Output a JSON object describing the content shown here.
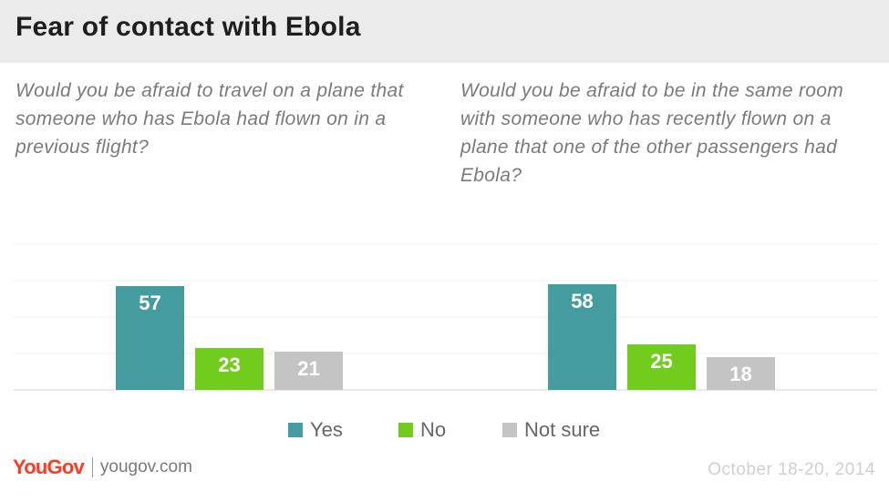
{
  "title": "Fear of contact with Ebola",
  "colors": {
    "yes": "#449c9e",
    "no": "#71cc1d",
    "not_sure": "#c4c4c4"
  },
  "chart_data": [
    {
      "type": "bar",
      "title": "Would you be afraid to travel on a plane that someone who has Ebola had flown on in a previous flight?",
      "categories": [
        "Yes",
        "No",
        "Not sure"
      ],
      "values": [
        57,
        23,
        21
      ],
      "ylim": [
        0,
        80
      ],
      "grid": true
    },
    {
      "type": "bar",
      "title": "Would you be afraid to be in the same room with someone who has recently flown on a plane that one of the other passengers had Ebola?",
      "categories": [
        "Yes",
        "No",
        "Not sure"
      ],
      "values": [
        58,
        25,
        18
      ],
      "ylim": [
        0,
        80
      ],
      "grid": true
    }
  ],
  "legend": [
    {
      "label": "Yes",
      "color": "#449c9e"
    },
    {
      "label": "No",
      "color": "#71cc1d"
    },
    {
      "label": "Not sure",
      "color": "#c4c4c4"
    }
  ],
  "footer": {
    "logo": "YouGov",
    "site": "yougov.com",
    "date": "October 18-20, 2014"
  }
}
